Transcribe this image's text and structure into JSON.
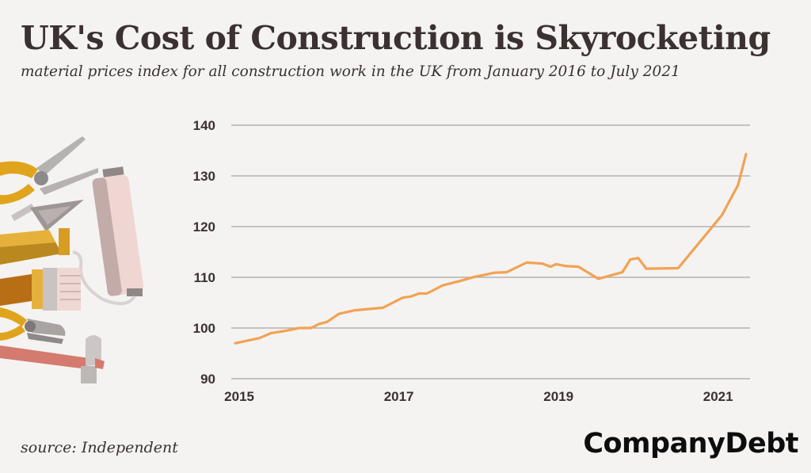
{
  "header": {
    "title": "UK's Cost of Construction is Skyrocketing",
    "subtitle": "material prices index for all construction work in the UK from January 2016 to July 2021"
  },
  "footer": {
    "source": "source: Independent",
    "brand": "CompanyDebt"
  },
  "colors": {
    "line": "#f2a253",
    "grid": "#a8a4a3",
    "text": "#3a3130",
    "background": "#f4f3f2"
  },
  "decoration": {
    "icons": [
      "pliers-icon",
      "trowel-icon",
      "paint-roller-icon",
      "paint-tube-icon",
      "paintbrush-icon",
      "pliers-icon",
      "hammer-icon"
    ]
  },
  "chart_data": {
    "type": "line",
    "title": "UK's Cost of Construction is Skyrocketing",
    "xlabel": "",
    "ylabel": "",
    "ylim": [
      90,
      140
    ],
    "xlim": [
      2014.9,
      2021.4
    ],
    "yticks": [
      90,
      100,
      110,
      120,
      130,
      140
    ],
    "xticks": [
      "2015",
      "2017",
      "2019",
      "2021"
    ],
    "grid": true,
    "series": [
      {
        "x": [
          2014.95,
          2015.25,
          2015.4,
          2015.6,
          2015.75,
          2015.9,
          2016.0,
          2016.1,
          2016.25,
          2016.45,
          2016.8,
          2017.05,
          2017.15,
          2017.25,
          2017.35,
          2017.55,
          2017.75,
          2017.95,
          2018.2,
          2018.35,
          2018.6,
          2018.8,
          2018.9,
          2018.97,
          2019.1,
          2019.25,
          2019.5,
          2019.8,
          2019.9,
          2020.0,
          2020.1,
          2020.5,
          2021.05,
          2021.25,
          2021.35
        ],
        "y": [
          97,
          98,
          99,
          99.5,
          100,
          100,
          100.8,
          101.2,
          102.8,
          103.5,
          104,
          106,
          106.2,
          106.8,
          106.8,
          108.4,
          109.2,
          110.1,
          110.9,
          111.0,
          112.9,
          112.7,
          112.1,
          112.6,
          112.2,
          112.1,
          109.7,
          111.0,
          113.5,
          113.8,
          111.7,
          111.8,
          122.3,
          128.2,
          134.3
        ]
      }
    ]
  }
}
